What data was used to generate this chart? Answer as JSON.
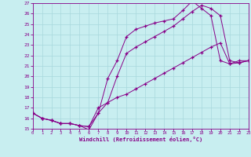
{
  "xlabel": "Windchill (Refroidissement éolien,°C)",
  "bg_color": "#c8eef0",
  "grid_color": "#a8d8dc",
  "line_color": "#880088",
  "xlim": [
    0,
    23
  ],
  "ylim": [
    15,
    27
  ],
  "yticks": [
    15,
    16,
    17,
    18,
    19,
    20,
    21,
    22,
    23,
    24,
    25,
    26,
    27
  ],
  "xticks": [
    0,
    1,
    2,
    3,
    4,
    5,
    6,
    7,
    8,
    9,
    10,
    11,
    12,
    13,
    14,
    15,
    16,
    17,
    18,
    19,
    20,
    21,
    22,
    23
  ],
  "line1_x": [
    0,
    1,
    2,
    3,
    4,
    5,
    6,
    7,
    8,
    9,
    10,
    11,
    12,
    13,
    14,
    15,
    16,
    17,
    18,
    19,
    20,
    21,
    22,
    23
  ],
  "line1_y": [
    16.5,
    16.0,
    15.8,
    15.5,
    15.5,
    15.3,
    14.9,
    16.5,
    19.8,
    21.5,
    23.8,
    24.5,
    24.8,
    25.1,
    25.3,
    25.5,
    26.3,
    27.2,
    26.5,
    25.8,
    21.5,
    21.2,
    21.5,
    21.5
  ],
  "line2_x": [
    0,
    1,
    2,
    3,
    4,
    5,
    6,
    7,
    8,
    9,
    10,
    11,
    12,
    13,
    14,
    15,
    16,
    17,
    18,
    19,
    20,
    21,
    22,
    23
  ],
  "line2_y": [
    16.5,
    16.0,
    15.8,
    15.5,
    15.5,
    15.3,
    15.2,
    16.5,
    17.5,
    18.0,
    18.3,
    18.8,
    19.3,
    19.8,
    20.3,
    20.8,
    21.3,
    21.8,
    22.3,
    22.8,
    23.2,
    21.2,
    21.3,
    21.5
  ],
  "line3_x": [
    0,
    1,
    2,
    3,
    4,
    5,
    6,
    7,
    8,
    9,
    10,
    11,
    12,
    13,
    14,
    15,
    16,
    17,
    18,
    19,
    20,
    21,
    22,
    23
  ],
  "line3_y": [
    16.5,
    16.0,
    15.8,
    15.5,
    15.5,
    15.3,
    15.2,
    17.0,
    17.5,
    20.0,
    22.2,
    22.8,
    23.3,
    23.8,
    24.3,
    24.8,
    25.5,
    26.2,
    26.8,
    26.5,
    25.8,
    21.5,
    21.3,
    21.5
  ]
}
